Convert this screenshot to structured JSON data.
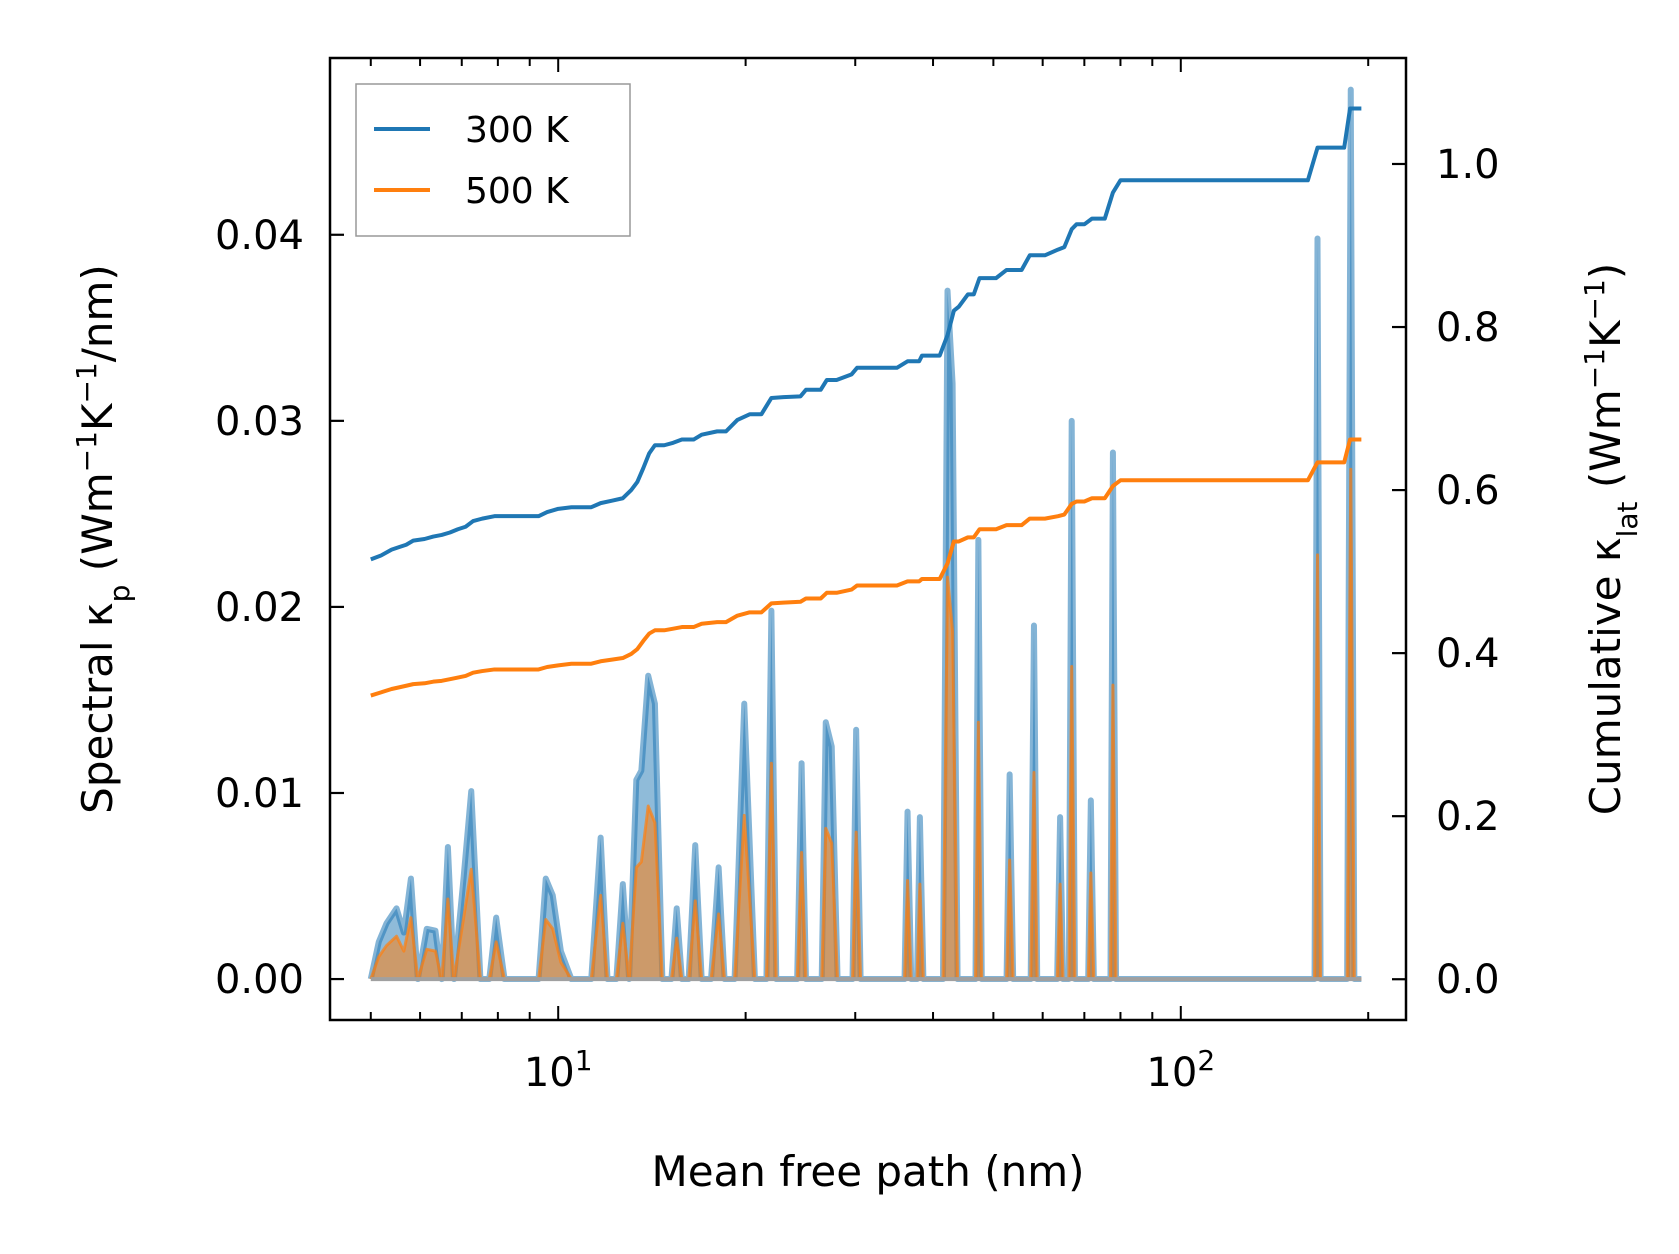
{
  "chart_data": {
    "type": "area+line",
    "xscale": "log",
    "xlim": [
      4.3,
      230
    ],
    "ylim_left": [
      -0.0022,
      0.0495
    ],
    "ylim_right": [
      -0.05,
      1.13
    ],
    "xlabel": "Mean free path (nm)",
    "ylabel_left": {
      "prefix": "Spectral κ",
      "sub": "p",
      "unit_open": " (Wm",
      "sup1": "−1",
      "mid": "K",
      "sup2": "−1",
      "unit_close": "/nm)"
    },
    "ylabel_right": {
      "prefix": "Cumulative κ",
      "sub": "lat",
      "unit_open": " (Wm",
      "sup1": "−1",
      "mid": "K",
      "sup2": "−1",
      "unit_close": ")"
    },
    "x_ticks": [
      {
        "value": 10,
        "base": "10",
        "exp": "1"
      },
      {
        "value": 100,
        "base": "10",
        "exp": "2"
      }
    ],
    "y_ticks_left": [
      {
        "value": 0.0,
        "label": "0.00"
      },
      {
        "value": 0.01,
        "label": "0.01"
      },
      {
        "value": 0.02,
        "label": "0.02"
      },
      {
        "value": 0.03,
        "label": "0.03"
      },
      {
        "value": 0.04,
        "label": "0.04"
      }
    ],
    "y_ticks_right": [
      {
        "value": 0.0,
        "label": "0.0"
      },
      {
        "value": 0.2,
        "label": "0.2"
      },
      {
        "value": 0.4,
        "label": "0.4"
      },
      {
        "value": 0.6,
        "label": "0.6"
      },
      {
        "value": 0.8,
        "label": "0.8"
      },
      {
        "value": 1.0,
        "label": "1.0"
      }
    ],
    "legend": {
      "position": "top-left",
      "entries": [
        {
          "label": "300 K",
          "color": "#1f77b4"
        },
        {
          "label": "500 K",
          "color": "#ff7f0e"
        }
      ]
    },
    "colors": {
      "s300": "#1f77b4",
      "s500": "#ff7f0e",
      "fill300": "#1f77b4",
      "fill500": "#ff7f0e"
    },
    "peaks_300K": [
      [
        5.0,
        0.0
      ],
      [
        5.15,
        0.002
      ],
      [
        5.3,
        0.003
      ],
      [
        5.5,
        0.0038
      ],
      [
        5.65,
        0.0025
      ],
      [
        5.8,
        0.0054
      ],
      [
        5.95,
        0.0
      ],
      [
        6.15,
        0.0027
      ],
      [
        6.35,
        0.0026
      ],
      [
        6.5,
        0.0
      ],
      [
        6.65,
        0.0071
      ],
      [
        6.8,
        0.0
      ],
      [
        7.05,
        0.0055
      ],
      [
        7.25,
        0.0101
      ],
      [
        7.5,
        0.0
      ],
      [
        7.75,
        0.0
      ],
      [
        7.95,
        0.0033
      ],
      [
        8.2,
        0.0
      ],
      [
        9.3,
        0.0
      ],
      [
        9.55,
        0.0054
      ],
      [
        9.8,
        0.0045
      ],
      [
        10.1,
        0.0015
      ],
      [
        10.5,
        0.0
      ],
      [
        11.3,
        0.0
      ],
      [
        11.7,
        0.0076
      ],
      [
        12.0,
        0.0
      ],
      [
        12.4,
        0.0
      ],
      [
        12.7,
        0.0051
      ],
      [
        13.0,
        0.0
      ],
      [
        13.35,
        0.0107
      ],
      [
        13.6,
        0.0112
      ],
      [
        13.95,
        0.0163
      ],
      [
        14.3,
        0.0148
      ],
      [
        14.7,
        0.0
      ],
      [
        15.2,
        0.0
      ],
      [
        15.5,
        0.0038
      ],
      [
        15.8,
        0.0
      ],
      [
        16.2,
        0.0
      ],
      [
        16.6,
        0.0072
      ],
      [
        17.0,
        0.0
      ],
      [
        17.6,
        0.0
      ],
      [
        18.1,
        0.006
      ],
      [
        18.5,
        0.0
      ],
      [
        19.2,
        0.0
      ],
      [
        19.9,
        0.0148
      ],
      [
        20.7,
        0.0
      ],
      [
        21.6,
        0.0
      ],
      [
        22.0,
        0.0198
      ],
      [
        22.4,
        0.0
      ],
      [
        24.2,
        0.0
      ],
      [
        24.6,
        0.0116
      ],
      [
        25.0,
        0.0
      ],
      [
        26.5,
        0.0
      ],
      [
        26.9,
        0.0138
      ],
      [
        27.5,
        0.0125
      ],
      [
        28.1,
        0.0
      ],
      [
        29.7,
        0.0
      ],
      [
        30.1,
        0.0134
      ],
      [
        30.6,
        0.0
      ],
      [
        36.0,
        0.0
      ],
      [
        36.4,
        0.009
      ],
      [
        36.9,
        0.0
      ],
      [
        37.7,
        0.0
      ],
      [
        38.1,
        0.0087
      ],
      [
        38.6,
        0.0
      ],
      [
        41.5,
        0.0
      ],
      [
        42.2,
        0.037
      ],
      [
        43.0,
        0.032
      ],
      [
        43.8,
        0.0
      ],
      [
        46.8,
        0.0
      ],
      [
        47.3,
        0.0236
      ],
      [
        47.9,
        0.0
      ],
      [
        52.5,
        0.0
      ],
      [
        53.1,
        0.011
      ],
      [
        53.8,
        0.0
      ],
      [
        57.4,
        0.0
      ],
      [
        58.1,
        0.019
      ],
      [
        58.8,
        0.0
      ],
      [
        63.3,
        0.0
      ],
      [
        64.0,
        0.0087
      ],
      [
        64.7,
        0.0
      ],
      [
        66.1,
        0.0
      ],
      [
        66.8,
        0.03
      ],
      [
        67.6,
        0.0
      ],
      [
        71.0,
        0.0
      ],
      [
        71.7,
        0.0096
      ],
      [
        72.5,
        0.0
      ],
      [
        77.1,
        0.0
      ],
      [
        77.8,
        0.0283
      ],
      [
        78.7,
        0.0
      ],
      [
        81.0,
        0.0
      ],
      [
        164.0,
        0.0
      ],
      [
        165.8,
        0.0398
      ],
      [
        167.7,
        0.0
      ],
      [
        185.0,
        0.0
      ],
      [
        187.5,
        0.0478
      ],
      [
        190.0,
        0.0
      ],
      [
        195.0,
        0.0
      ]
    ],
    "peaks_500K": [
      [
        5.0,
        0.0
      ],
      [
        5.15,
        0.0012
      ],
      [
        5.3,
        0.0018
      ],
      [
        5.5,
        0.0023
      ],
      [
        5.65,
        0.0015
      ],
      [
        5.8,
        0.0033
      ],
      [
        5.95,
        0.0
      ],
      [
        6.15,
        0.0016
      ],
      [
        6.35,
        0.0015
      ],
      [
        6.5,
        0.0
      ],
      [
        6.65,
        0.0043
      ],
      [
        6.8,
        0.0
      ],
      [
        7.05,
        0.0033
      ],
      [
        7.25,
        0.0059
      ],
      [
        7.5,
        0.0
      ],
      [
        7.75,
        0.0
      ],
      [
        7.95,
        0.002
      ],
      [
        8.2,
        0.0
      ],
      [
        9.3,
        0.0
      ],
      [
        9.55,
        0.0032
      ],
      [
        9.8,
        0.0027
      ],
      [
        10.1,
        0.0009
      ],
      [
        10.5,
        0.0
      ],
      [
        11.3,
        0.0
      ],
      [
        11.7,
        0.0045
      ],
      [
        12.0,
        0.0
      ],
      [
        12.4,
        0.0
      ],
      [
        12.7,
        0.003
      ],
      [
        13.0,
        0.0
      ],
      [
        13.35,
        0.006
      ],
      [
        13.6,
        0.0063
      ],
      [
        13.95,
        0.0093
      ],
      [
        14.3,
        0.0084
      ],
      [
        14.7,
        0.0
      ],
      [
        15.2,
        0.0
      ],
      [
        15.5,
        0.0022
      ],
      [
        15.8,
        0.0
      ],
      [
        16.2,
        0.0
      ],
      [
        16.6,
        0.0042
      ],
      [
        17.0,
        0.0
      ],
      [
        17.6,
        0.0
      ],
      [
        18.1,
        0.0035
      ],
      [
        18.5,
        0.0
      ],
      [
        19.2,
        0.0
      ],
      [
        19.9,
        0.0088
      ],
      [
        20.7,
        0.0
      ],
      [
        21.6,
        0.0
      ],
      [
        22.0,
        0.0116
      ],
      [
        22.4,
        0.0
      ],
      [
        24.2,
        0.0
      ],
      [
        24.6,
        0.0068
      ],
      [
        25.0,
        0.0
      ],
      [
        26.5,
        0.0
      ],
      [
        26.9,
        0.0081
      ],
      [
        27.5,
        0.0073
      ],
      [
        28.1,
        0.0
      ],
      [
        29.7,
        0.0
      ],
      [
        30.1,
        0.0079
      ],
      [
        30.6,
        0.0
      ],
      [
        36.0,
        0.0
      ],
      [
        36.4,
        0.0053
      ],
      [
        36.9,
        0.0
      ],
      [
        37.7,
        0.0
      ],
      [
        38.1,
        0.0051
      ],
      [
        38.6,
        0.0
      ],
      [
        41.5,
        0.0
      ],
      [
        42.2,
        0.0216
      ],
      [
        43.0,
        0.0187
      ],
      [
        43.8,
        0.0
      ],
      [
        46.8,
        0.0
      ],
      [
        47.3,
        0.0138
      ],
      [
        47.9,
        0.0
      ],
      [
        52.5,
        0.0
      ],
      [
        53.1,
        0.0064
      ],
      [
        53.8,
        0.0
      ],
      [
        57.4,
        0.0
      ],
      [
        58.1,
        0.0111
      ],
      [
        58.8,
        0.0
      ],
      [
        63.3,
        0.0
      ],
      [
        64.0,
        0.0051
      ],
      [
        64.7,
        0.0
      ],
      [
        66.1,
        0.0
      ],
      [
        66.8,
        0.0168
      ],
      [
        67.6,
        0.0
      ],
      [
        71.0,
        0.0
      ],
      [
        71.7,
        0.0057
      ],
      [
        72.5,
        0.0
      ],
      [
        77.1,
        0.0
      ],
      [
        77.8,
        0.0158
      ],
      [
        78.7,
        0.0
      ],
      [
        81.0,
        0.0
      ],
      [
        164.0,
        0.0
      ],
      [
        165.8,
        0.0228
      ],
      [
        167.7,
        0.0
      ],
      [
        185.0,
        0.0
      ],
      [
        187.5,
        0.0274
      ],
      [
        190.0,
        0.0
      ],
      [
        195.0,
        0.0
      ]
    ],
    "cumulative_300K": [
      [
        5.0,
        0.515
      ],
      [
        5.2,
        0.52
      ],
      [
        5.4,
        0.527
      ],
      [
        5.55,
        0.53
      ],
      [
        5.7,
        0.533
      ],
      [
        5.85,
        0.538
      ],
      [
        6.1,
        0.54
      ],
      [
        6.3,
        0.543
      ],
      [
        6.5,
        0.545
      ],
      [
        6.7,
        0.548
      ],
      [
        6.9,
        0.552
      ],
      [
        7.1,
        0.555
      ],
      [
        7.3,
        0.562
      ],
      [
        7.55,
        0.565
      ],
      [
        7.9,
        0.568
      ],
      [
        8.5,
        0.568
      ],
      [
        9.3,
        0.568
      ],
      [
        9.6,
        0.573
      ],
      [
        10.0,
        0.577
      ],
      [
        10.5,
        0.579
      ],
      [
        11.3,
        0.579
      ],
      [
        11.7,
        0.584
      ],
      [
        12.2,
        0.587
      ],
      [
        12.7,
        0.59
      ],
      [
        13.1,
        0.6
      ],
      [
        13.4,
        0.61
      ],
      [
        13.7,
        0.627
      ],
      [
        14.0,
        0.645
      ],
      [
        14.3,
        0.655
      ],
      [
        14.8,
        0.655
      ],
      [
        15.3,
        0.658
      ],
      [
        15.8,
        0.662
      ],
      [
        16.5,
        0.662
      ],
      [
        17.0,
        0.668
      ],
      [
        18.0,
        0.672
      ],
      [
        18.6,
        0.672
      ],
      [
        19.4,
        0.686
      ],
      [
        20.3,
        0.693
      ],
      [
        21.2,
        0.693
      ],
      [
        22.0,
        0.713
      ],
      [
        23.0,
        0.714
      ],
      [
        24.5,
        0.715
      ],
      [
        25.0,
        0.723
      ],
      [
        26.4,
        0.723
      ],
      [
        27.0,
        0.735
      ],
      [
        28.0,
        0.735
      ],
      [
        29.6,
        0.742
      ],
      [
        30.2,
        0.75
      ],
      [
        33.0,
        0.75
      ],
      [
        35.0,
        0.75
      ],
      [
        36.4,
        0.758
      ],
      [
        38.0,
        0.758
      ],
      [
        38.4,
        0.765
      ],
      [
        41.0,
        0.765
      ],
      [
        42.2,
        0.79
      ],
      [
        43.2,
        0.82
      ],
      [
        44.0,
        0.825
      ],
      [
        45.5,
        0.84
      ],
      [
        46.5,
        0.84
      ],
      [
        47.5,
        0.86
      ],
      [
        50.5,
        0.86
      ],
      [
        52.5,
        0.87
      ],
      [
        55.5,
        0.87
      ],
      [
        57.2,
        0.888
      ],
      [
        60.5,
        0.888
      ],
      [
        63.5,
        0.895
      ],
      [
        65.0,
        0.898
      ],
      [
        66.8,
        0.92
      ],
      [
        68.0,
        0.926
      ],
      [
        70.0,
        0.926
      ],
      [
        72.0,
        0.933
      ],
      [
        75.5,
        0.933
      ],
      [
        77.8,
        0.965
      ],
      [
        80.0,
        0.98
      ],
      [
        150.0,
        0.98
      ],
      [
        160.0,
        0.98
      ],
      [
        165.8,
        1.02
      ],
      [
        170.0,
        1.02
      ],
      [
        183.0,
        1.02
      ],
      [
        187.0,
        1.068
      ],
      [
        195.0,
        1.068
      ]
    ],
    "cumulative_500K": [
      [
        5.0,
        0.348
      ],
      [
        5.2,
        0.352
      ],
      [
        5.4,
        0.356
      ],
      [
        5.55,
        0.358
      ],
      [
        5.7,
        0.36
      ],
      [
        5.85,
        0.362
      ],
      [
        6.1,
        0.363
      ],
      [
        6.3,
        0.365
      ],
      [
        6.5,
        0.366
      ],
      [
        6.7,
        0.368
      ],
      [
        6.9,
        0.37
      ],
      [
        7.1,
        0.372
      ],
      [
        7.3,
        0.376
      ],
      [
        7.55,
        0.378
      ],
      [
        7.9,
        0.38
      ],
      [
        8.5,
        0.38
      ],
      [
        9.3,
        0.38
      ],
      [
        9.6,
        0.383
      ],
      [
        10.0,
        0.385
      ],
      [
        10.5,
        0.387
      ],
      [
        11.3,
        0.387
      ],
      [
        11.7,
        0.39
      ],
      [
        12.2,
        0.392
      ],
      [
        12.7,
        0.394
      ],
      [
        13.1,
        0.399
      ],
      [
        13.4,
        0.405
      ],
      [
        13.7,
        0.415
      ],
      [
        14.0,
        0.424
      ],
      [
        14.3,
        0.428
      ],
      [
        14.8,
        0.428
      ],
      [
        15.3,
        0.43
      ],
      [
        15.8,
        0.432
      ],
      [
        16.5,
        0.432
      ],
      [
        17.0,
        0.436
      ],
      [
        18.0,
        0.438
      ],
      [
        18.6,
        0.438
      ],
      [
        19.4,
        0.446
      ],
      [
        20.3,
        0.45
      ],
      [
        21.2,
        0.45
      ],
      [
        22.0,
        0.461
      ],
      [
        23.0,
        0.462
      ],
      [
        24.5,
        0.463
      ],
      [
        25.0,
        0.467
      ],
      [
        26.4,
        0.467
      ],
      [
        27.0,
        0.474
      ],
      [
        28.0,
        0.474
      ],
      [
        29.6,
        0.478
      ],
      [
        30.2,
        0.483
      ],
      [
        33.0,
        0.483
      ],
      [
        35.0,
        0.483
      ],
      [
        36.4,
        0.488
      ],
      [
        38.0,
        0.488
      ],
      [
        38.4,
        0.491
      ],
      [
        41.0,
        0.491
      ],
      [
        42.2,
        0.51
      ],
      [
        43.2,
        0.537
      ],
      [
        44.0,
        0.537
      ],
      [
        45.5,
        0.542
      ],
      [
        46.5,
        0.542
      ],
      [
        47.5,
        0.552
      ],
      [
        50.5,
        0.552
      ],
      [
        52.5,
        0.557
      ],
      [
        55.5,
        0.557
      ],
      [
        57.2,
        0.565
      ],
      [
        60.5,
        0.565
      ],
      [
        63.5,
        0.568
      ],
      [
        65.0,
        0.57
      ],
      [
        66.8,
        0.583
      ],
      [
        68.0,
        0.586
      ],
      [
        70.0,
        0.586
      ],
      [
        72.0,
        0.59
      ],
      [
        75.5,
        0.59
      ],
      [
        77.8,
        0.605
      ],
      [
        80.0,
        0.612
      ],
      [
        150.0,
        0.612
      ],
      [
        160.0,
        0.612
      ],
      [
        165.8,
        0.634
      ],
      [
        170.0,
        0.634
      ],
      [
        183.0,
        0.634
      ],
      [
        187.0,
        0.662
      ],
      [
        195.0,
        0.662
      ]
    ]
  }
}
